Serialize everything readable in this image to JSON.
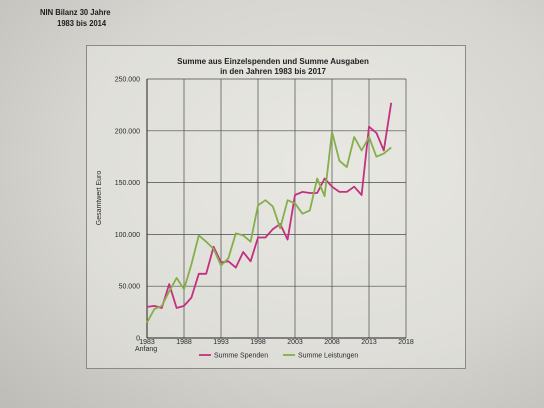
{
  "header_note": {
    "line1": "NIN Bilanz 30 Jahre",
    "line2": "1983 bis 2014"
  },
  "chart_data": {
    "type": "line",
    "title": "Summe aus Einzelspenden und  Summe Ausgaben",
    "subtitle": "in den Jahren 1983 bis 2017",
    "ylabel": "Gesamtwert Euro",
    "x_extra_label": "Anfang",
    "ylim": [
      0,
      250000
    ],
    "xlim": [
      1983,
      2018
    ],
    "y_ticks": [
      0,
      50000,
      100000,
      150000,
      200000,
      250000
    ],
    "y_tick_labels": [
      "0",
      "50.000",
      "100.000",
      "150.000",
      "200.000",
      "250.000"
    ],
    "x_ticks": [
      1983,
      1988,
      1993,
      1998,
      2003,
      2008,
      2013,
      2018
    ],
    "x_tick_labels": [
      "1983",
      "1988",
      "1993",
      "1998",
      "2003",
      "2008",
      "2013",
      "2018"
    ],
    "grid": true,
    "legend_position": "bottom",
    "series": [
      {
        "name": "Summe Spenden",
        "color": "#c2307e",
        "x": [
          1983,
          1984,
          1985,
          1986,
          1987,
          1988,
          1989,
          1990,
          1991,
          1992,
          1993,
          1994,
          1995,
          1996,
          1997,
          1998,
          1999,
          2000,
          2001,
          2002,
          2003,
          2004,
          2005,
          2006,
          2007,
          2008,
          2009,
          2010,
          2011,
          2012,
          2013,
          2014,
          2015,
          2016
        ],
        "values": [
          30000,
          31000,
          29000,
          52000,
          29000,
          31000,
          39000,
          62000,
          62000,
          88000,
          73000,
          74000,
          68000,
          83000,
          74000,
          97000,
          97000,
          105000,
          110000,
          95000,
          138000,
          141000,
          140000,
          140000,
          154000,
          146000,
          141000,
          141000,
          146000,
          138000,
          204000,
          198000,
          181000,
          227000
        ]
      },
      {
        "name": "Summe Leistungen",
        "color": "#86ae4a",
        "x": [
          1983,
          1984,
          1985,
          1986,
          1987,
          1988,
          1989,
          1990,
          1991,
          1992,
          1993,
          1994,
          1995,
          1996,
          1997,
          1998,
          1999,
          2000,
          2001,
          2002,
          2003,
          2004,
          2005,
          2006,
          2007,
          2008,
          2009,
          2010,
          2011,
          2012,
          2013,
          2014,
          2015,
          2016
        ],
        "values": [
          15000,
          28000,
          31000,
          45000,
          58000,
          47000,
          71000,
          99000,
          93000,
          86000,
          70000,
          77000,
          101000,
          99000,
          93000,
          128000,
          133000,
          127000,
          106000,
          133000,
          130000,
          120000,
          123000,
          154000,
          137000,
          199000,
          171000,
          165000,
          194000,
          181000,
          194000,
          175000,
          178000,
          184000
        ]
      }
    ]
  }
}
